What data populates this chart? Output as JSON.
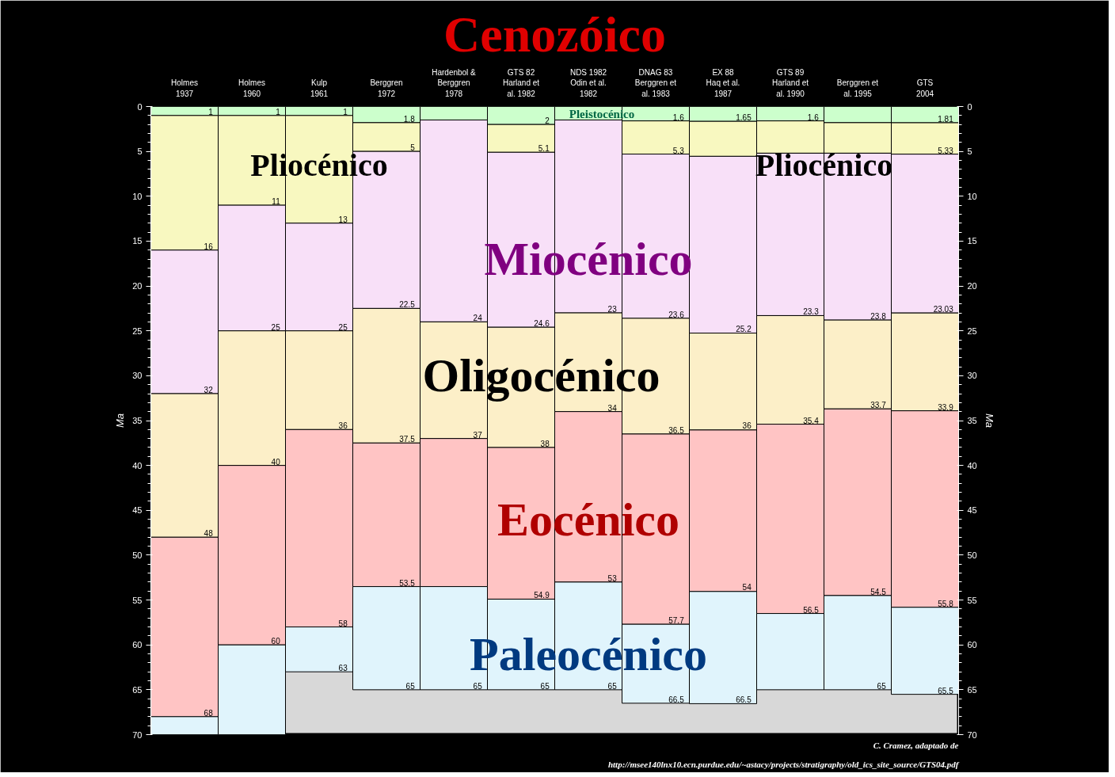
{
  "chart_data": {
    "type": "bar",
    "stacked": true,
    "title": "Cenozóico",
    "categories": [
      "Holmes\n1937",
      "Holmes\n1960",
      "Kulp\n1961",
      "Berggren\n1972",
      "Hardenbol &\nBerggren\n1978",
      "GTS 82\nHarland et\nal. 1982",
      "NDS 1982\nOdin et al.\n1982",
      "DNAG 83\nBerggren et\nal. 1983",
      "EX 88\nHaq et al.\n1987",
      "GTS 89\nHarland et\nal. 1990",
      "Berggren et\nal. 1995",
      "GTS\n2004"
    ],
    "series": [
      {
        "color": "#ccffcc",
        "values": [
          1,
          1,
          1,
          1.8,
          1.5,
          2,
          1.5,
          1.6,
          1.65,
          1.6,
          1.8,
          1.81
        ]
      },
      {
        "color": "#f8f8c0",
        "values": [
          15,
          10,
          12,
          3.2,
          null,
          3.1,
          null,
          3.7,
          3.9,
          3.6,
          3.4,
          3.5
        ]
      },
      {
        "color": "#f8e0f8",
        "values": [
          16,
          14,
          12,
          17.5,
          22.5,
          19.5,
          21.5,
          18.3,
          19.7,
          18.1,
          18.6,
          17.7
        ]
      },
      {
        "color": "#fcefc8",
        "values": [
          16,
          15,
          11,
          15,
          13,
          13.4,
          11,
          12.9,
          10.8,
          12.1,
          9.9,
          10.9
        ]
      },
      {
        "color": "#ffc4c4",
        "values": [
          20,
          20,
          22,
          16,
          16.5,
          16.9,
          19,
          21.2,
          18,
          21.1,
          20.8,
          21.9
        ]
      },
      {
        "color": "#e0f4fc",
        "values": [
          2,
          10,
          5,
          11.5,
          11.5,
          10.1,
          12,
          8.8,
          12.5,
          8.5,
          10.5,
          9.7
        ]
      }
    ],
    "ylabel": "Ma",
    "y2label": "Ma",
    "ylim": [
      70,
      0
    ],
    "yticks": [
      0,
      5,
      10,
      15,
      20,
      25,
      30,
      35,
      40,
      45,
      50,
      55,
      60,
      65,
      70
    ],
    "y2lim": [
      70,
      0
    ],
    "y2ticks": [
      0,
      5,
      10,
      15,
      20,
      25,
      30,
      35,
      40,
      45,
      50,
      55,
      60,
      65,
      70
    ],
    "grid": false,
    "annotations": [
      "Pleistocénico",
      "Pliocénico",
      "Pliocénico",
      "Miocénico",
      "Oligocénico",
      "Eocénico",
      "Paleocénico",
      "1",
      "1",
      "1",
      "5",
      "2",
      "C. Cramez, adaptado de",
      "http://msee140lnx10.ecn.purdue.edu/~astacy/projects/stratigraphy/old_ics_site_source/GTS04.pdf",
      {
        "text": "16",
        "x": "Holmes\n1937",
        "y": 16
      },
      {
        "text": "32",
        "x": "Holmes\n1937",
        "y": 32
      },
      {
        "text": "48",
        "x": "Holmes\n1937",
        "y": 48
      },
      {
        "text": "68",
        "x": "Holmes\n1937",
        "y": 68
      },
      {
        "text": "11",
        "x": "Holmes\n1960",
        "y": 11
      },
      {
        "text": "25",
        "x": "Holmes\n1960",
        "y": 25
      },
      {
        "text": "40",
        "x": "Holmes\n1960",
        "y": 40
      },
      {
        "text": "60",
        "x": "Holmes\n1960",
        "y": 60
      },
      {
        "text": "13",
        "x": "Kulp\n1961",
        "y": 13
      },
      {
        "text": "25",
        "x": "Kulp\n1961",
        "y": 25
      },
      {
        "text": "36",
        "x": "Kulp\n1961",
        "y": 36
      },
      {
        "text": "58",
        "x": "Kulp\n1961",
        "y": 58
      },
      {
        "text": "63",
        "x": "Kulp\n1961",
        "y": 63
      },
      {
        "text": "1.8",
        "x": "Berggren\n1972",
        "y": 1.8
      },
      {
        "text": "22.5",
        "x": "Berggren\n1972",
        "y": 22.5
      },
      {
        "text": "37.5",
        "x": "Berggren\n1972",
        "y": 37.5
      },
      {
        "text": "53.5",
        "x": "Berggren\n1972",
        "y": 53.5
      },
      {
        "text": "65",
        "x": "Berggren\n1972",
        "y": 65
      },
      {
        "text": "24",
        "x": "Hardenbol &\nBerggren\n1978",
        "y": 24
      },
      {
        "text": "37",
        "x": "Hardenbol &\nBerggren\n1978",
        "y": 37
      },
      {
        "text": "65",
        "x": "Hardenbol &\nBerggren\n1978",
        "y": 65
      },
      {
        "text": "5.1",
        "x": "GTS 82\nHarland et\nal. 1982",
        "y": 5.1
      },
      {
        "text": "24.6",
        "x": "GTS 82\nHarland et\nal. 1982",
        "y": 24.6
      },
      {
        "text": "38",
        "x": "GTS 82\nHarland et\nal. 1982",
        "y": 38
      },
      {
        "text": "54.9",
        "x": "GTS 82\nHarland et\nal. 1982",
        "y": 54.9
      },
      {
        "text": "65",
        "x": "GTS 82\nHarland et\nal. 1982",
        "y": 65
      },
      {
        "text": "23",
        "x": "NDS 1982\nOdin et al.\n1982",
        "y": 23
      },
      {
        "text": "34",
        "x": "NDS 1982\nOdin et al.\n1982",
        "y": 34
      },
      {
        "text": "53",
        "x": "NDS 1982\nOdin et al.\n1982",
        "y": 53
      },
      {
        "text": "65",
        "x": "NDS 1982\nOdin et al.\n1982",
        "y": 65
      },
      {
        "text": "1.6",
        "x": "DNAG 83\nBerggren et\nal. 1983",
        "y": 1.6
      },
      {
        "text": "5.3",
        "x": "DNAG 83\nBerggren et\nal. 1983",
        "y": 5.3
      },
      {
        "text": "23.6",
        "x": "DNAG 83\nBerggren et\nal. 1983",
        "y": 23.6
      },
      {
        "text": "36.5",
        "x": "DNAG 83\nBerggren et\nal. 1983",
        "y": 36.5
      },
      {
        "text": "57.7",
        "x": "DNAG 83\nBerggren et\nal. 1983",
        "y": 57.7
      },
      {
        "text": "66.5",
        "x": "DNAG 83\nBerggren et\nal. 1983",
        "y": 66.5
      },
      {
        "text": "1.65",
        "x": "EX 88\nHaq et al.\n1987",
        "y": 1.65
      },
      {
        "text": "25.2",
        "x": "EX 88\nHaq et al.\n1987",
        "y": 25.2
      },
      {
        "text": "36",
        "x": "EX 88\nHaq et al.\n1987",
        "y": 36
      },
      {
        "text": "54",
        "x": "EX 88\nHaq et al.\n1987",
        "y": 54
      },
      {
        "text": "66.5",
        "x": "EX 88\nHaq et al.\n1987",
        "y": 66.5
      },
      {
        "text": "1.6",
        "x": "GTS 89\nHarland et\nal. 1990",
        "y": 1.6
      },
      {
        "text": "23.3",
        "x": "GTS 89\nHarland et\nal. 1990",
        "y": 23.3
      },
      {
        "text": "35.4",
        "x": "GTS 89\nHarland et\nal. 1990",
        "y": 35.4
      },
      {
        "text": "56.5",
        "x": "GTS 89\nHarland et\nal. 1990",
        "y": 56.5
      },
      {
        "text": "23.8",
        "x": "Berggren et\nal. 1995",
        "y": 23.8
      },
      {
        "text": "33.7",
        "x": "Berggren et\nal. 1995",
        "y": 33.7
      },
      {
        "text": "54.5",
        "x": "Berggren et\nal. 1995",
        "y": 54.5
      },
      {
        "text": "65",
        "x": "Berggren et\nal. 1995",
        "y": 65
      },
      {
        "text": "1.81",
        "x": "GTS\n2004",
        "y": 1.81
      },
      {
        "text": "5.33",
        "x": "GTS\n2004",
        "y": 5.33
      },
      {
        "text": "23.03",
        "x": "GTS\n2004",
        "y": 23.03
      },
      {
        "text": "33.9",
        "x": "GTS\n2004",
        "y": 33.9
      },
      {
        "text": "55.8",
        "x": "GTS\n2004",
        "y": 55.8
      },
      {
        "text": "65.5",
        "x": "GTS\n2004",
        "y": 65.5
      }
    ]
  }
}
